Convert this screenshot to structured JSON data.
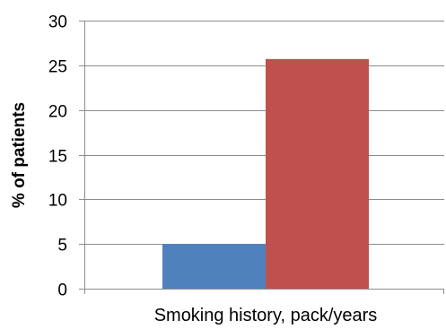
{
  "chart_data": {
    "type": "bar",
    "title": "",
    "xlabel": "Smoking history, pack/years",
    "ylabel": "% of patients",
    "categories": [
      ""
    ],
    "series": [
      {
        "values": [
          5
        ],
        "color": "#4f81bd"
      },
      {
        "values": [
          25.7
        ],
        "color": "#c0504d"
      }
    ],
    "ylim": [
      0,
      30
    ],
    "yticks": [
      0,
      5,
      10,
      15,
      20,
      25,
      30
    ],
    "grid": true,
    "legend": "none"
  }
}
